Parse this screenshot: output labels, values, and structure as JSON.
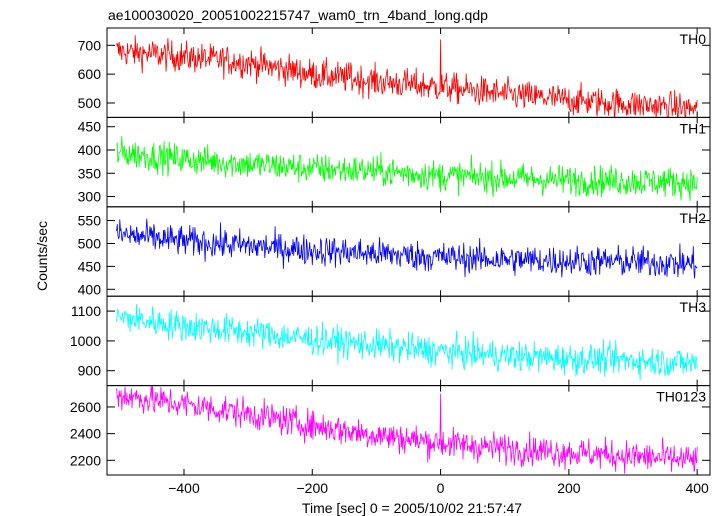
{
  "chart_data": {
    "type": "line",
    "title": "ae100030020_20051002215747_wam0_trn_4band_long.qdp",
    "xlabel": "Time [sec] 0 = 2005/10/02 21:57:47",
    "ylabel": "Counts/sec",
    "xlim": [
      -520,
      420
    ],
    "xticks": [
      -400,
      -200,
      0,
      200,
      400
    ],
    "xtick_labels": [
      "−400",
      "−200",
      "0",
      "200",
      "400"
    ],
    "grid": false,
    "data_note": "noisy light curves, ~1 s bins from -505 s to 400 s; points below are the decreasing trend with a spike near t=0",
    "panels": [
      {
        "name": "TH0",
        "color": "#ff0000",
        "ylim": [
          450,
          760
        ],
        "yticks": [
          500,
          600,
          700
        ],
        "x": [
          -505,
          -400,
          -300,
          -200,
          -100,
          0,
          100,
          200,
          300,
          400
        ],
        "values": [
          680,
          660,
          640,
          600,
          575,
          555,
          530,
          510,
          495,
          480
        ],
        "spikes": [
          {
            "x": 0,
            "y": 720
          },
          {
            "x": -140,
            "y": 640
          }
        ]
      },
      {
        "name": "TH1",
        "color": "#00ff00",
        "ylim": [
          278,
          470
        ],
        "yticks": [
          300,
          350,
          400,
          450
        ],
        "x": [
          -505,
          -400,
          -300,
          -200,
          -100,
          0,
          100,
          200,
          300,
          400
        ],
        "values": [
          395,
          380,
          370,
          360,
          355,
          345,
          340,
          335,
          333,
          330
        ]
      },
      {
        "name": "TH2",
        "color": "#0000ff",
        "ylim": [
          385,
          580
        ],
        "yticks": [
          400,
          450,
          500,
          550
        ],
        "x": [
          -505,
          -400,
          -300,
          -200,
          -100,
          0,
          100,
          200,
          300,
          400
        ],
        "values": [
          520,
          505,
          495,
          485,
          478,
          470,
          465,
          462,
          460,
          455
        ]
      },
      {
        "name": "TH3",
        "color": "#00ffff",
        "ylim": [
          850,
          1150
        ],
        "yticks": [
          900,
          1000,
          1100
        ],
        "x": [
          -505,
          -400,
          -300,
          -200,
          -100,
          0,
          100,
          200,
          300,
          400
        ],
        "values": [
          1080,
          1050,
          1030,
          1005,
          985,
          965,
          950,
          940,
          935,
          925
        ]
      },
      {
        "name": "TH0123",
        "color": "#ff00ff",
        "ylim": [
          2090,
          2760
        ],
        "yticks": [
          2200,
          2400,
          2600
        ],
        "x": [
          -505,
          -400,
          -300,
          -200,
          -100,
          0,
          100,
          200,
          300,
          400
        ],
        "values": [
          2690,
          2620,
          2550,
          2460,
          2390,
          2330,
          2290,
          2260,
          2230,
          2200
        ],
        "spikes": [
          {
            "x": 0,
            "y": 2700
          }
        ]
      }
    ]
  }
}
